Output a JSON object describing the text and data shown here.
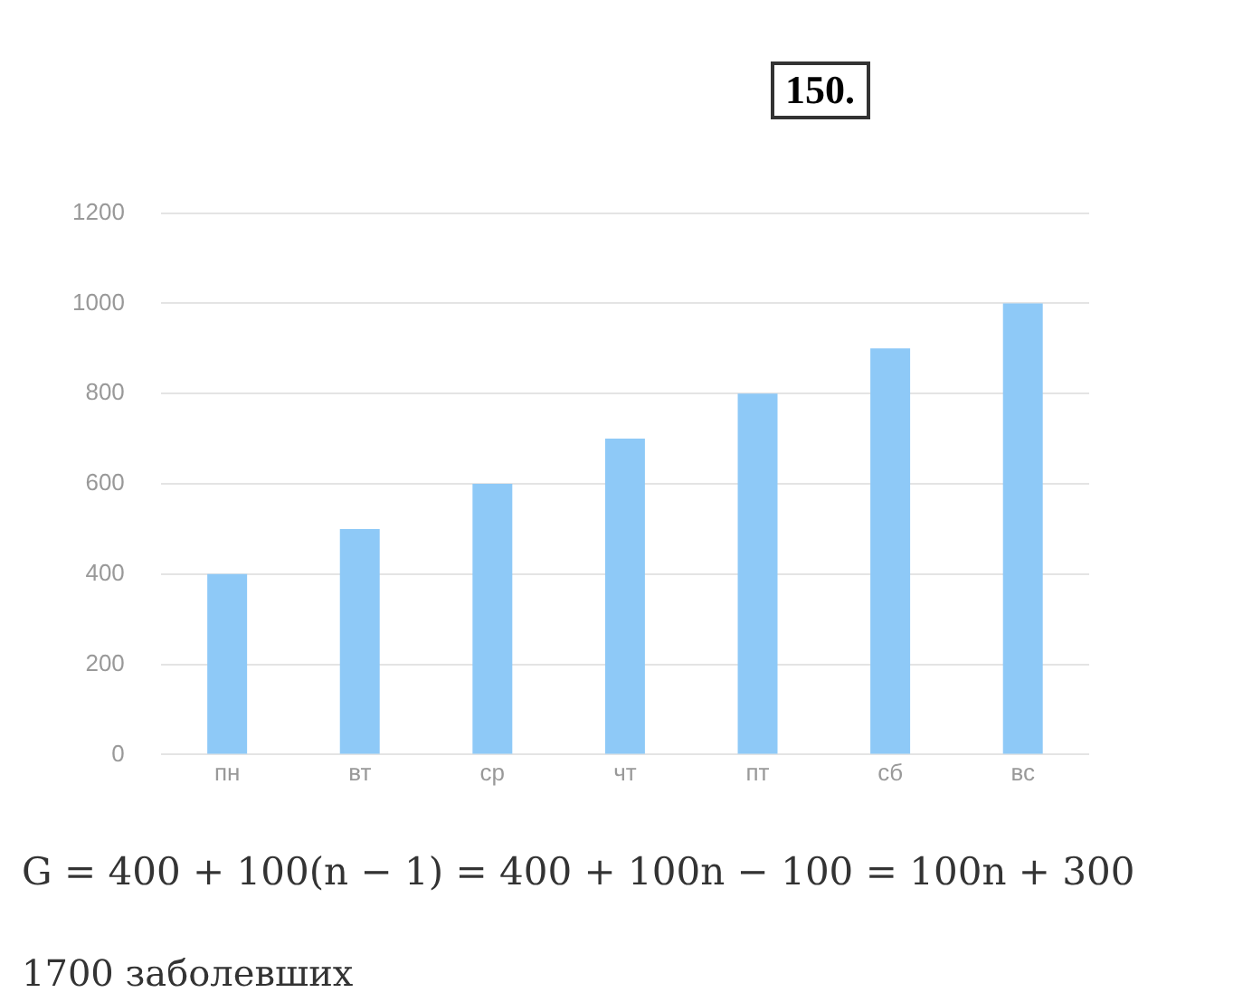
{
  "chart_data": {
    "type": "bar",
    "title": "150.",
    "categories": [
      "пн",
      "вт",
      "ср",
      "чт",
      "пт",
      "сб",
      "вс"
    ],
    "values": [
      400,
      500,
      600,
      700,
      800,
      900,
      1000
    ],
    "color": "#8ec9f7",
    "ylim": [
      0,
      1200
    ],
    "yticks": [
      0,
      200,
      400,
      600,
      800,
      1000,
      1200
    ],
    "grid": "y",
    "annotations": [
      "G = 400 + 100(n − 1) = 400 + 100n − 100 = 100n + 300",
      "1700 заболевших"
    ]
  }
}
